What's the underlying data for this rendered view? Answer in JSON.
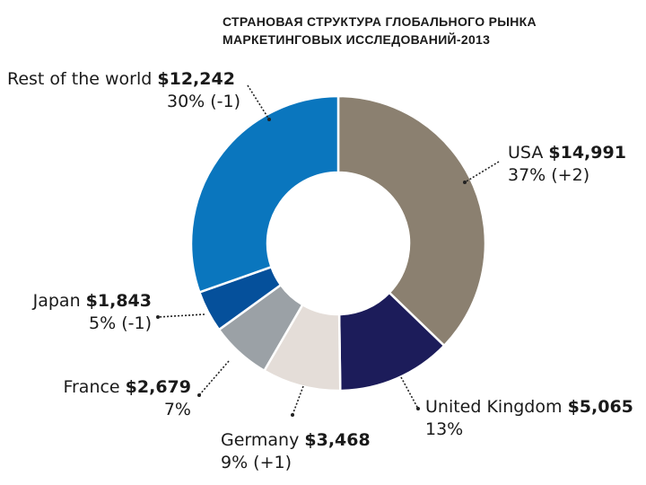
{
  "chart_data": {
    "type": "pie",
    "title_line1": "СТРАНОВАЯ  СТРУКТУРА  ГЛОБАЛЬНОГО  РЫНКА",
    "title_line2": "МАРКЕТИНГОВЫХ  ИССЛЕДОВАНИЙ-2013",
    "slices": [
      {
        "name": "USA",
        "value": 14991,
        "amount": "$14,991",
        "share": "37% (+2)",
        "color": "#8b8070"
      },
      {
        "name": "United Kingdom",
        "value": 5065,
        "amount": "$5,065",
        "share": "13%",
        "color": "#1c1c5a"
      },
      {
        "name": "Germany",
        "value": 3468,
        "amount": "$3,468",
        "share": "9% (+1)",
        "color": "#e4ddd8"
      },
      {
        "name": "France",
        "value": 2679,
        "amount": "$2,679",
        "share": "7%",
        "color": "#9ba1a6"
      },
      {
        "name": "Japan",
        "value": 1843,
        "amount": "$1,843",
        "share": "5%  (-1)",
        "color": "#05509b"
      },
      {
        "name": "Rest of the world",
        "value": 12242,
        "amount": "$12,242",
        "share": "30% (-1)",
        "color": "#0a76be"
      }
    ],
    "donut": true,
    "start_angle_deg": 0,
    "direction": "clockwise"
  }
}
